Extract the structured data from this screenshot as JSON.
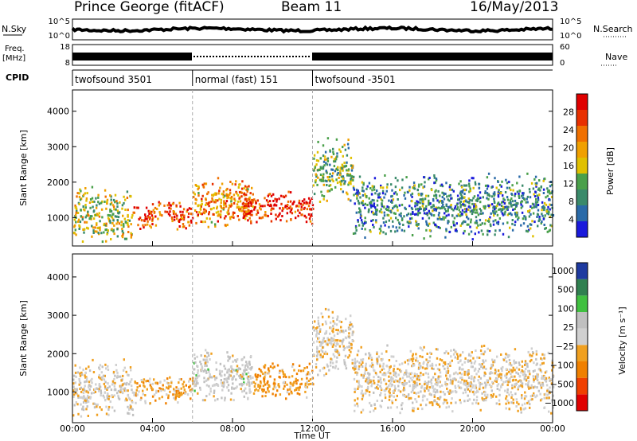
{
  "header": {
    "station": "Prince George (fitACF)",
    "beam": "Beam 11",
    "date": "16/May/2013"
  },
  "strips": {
    "nsky_label": "N.Sky",
    "nsky_ticks": [
      "10^5",
      "10^0"
    ],
    "nsearch_label": "N.Search",
    "nsearch_right_ticks": [
      "10^5",
      "10^0"
    ],
    "freq_label_line1": "Freq.",
    "freq_label_line2": "[MHz]",
    "freq_ticks": [
      "18",
      "8"
    ],
    "nave_label": "Nave",
    "nave_right_ticks": [
      "60",
      "0"
    ],
    "cpid_label": "CPID",
    "cpid_segments": [
      {
        "label": "twofsound 3501",
        "start_hour": 0,
        "end_hour": 6
      },
      {
        "label": "normal (fast) 151",
        "start_hour": 6,
        "end_hour": 12
      },
      {
        "label": "twofsound -3501",
        "start_hour": 12,
        "end_hour": 24
      }
    ]
  },
  "colors": {
    "power_scale": [
      "#1a1adc",
      "#2a6aa8",
      "#3a8a6a",
      "#4aa04a",
      "#e0c000",
      "#f0a000",
      "#f07000",
      "#e83000",
      "#e00000"
    ],
    "velocity_scale": [
      "#e00000",
      "#f04000",
      "#f08000",
      "#f0a020",
      "#d0d0d0",
      "#c0c0c0",
      "#40c040",
      "#308050",
      "#1e3aa0"
    ]
  },
  "chart_data": [
    {
      "type": "heatmap",
      "title": "",
      "xlabel": "",
      "ylabel": "Slant Range [km]",
      "xlim": [
        0,
        24
      ],
      "ylim": [
        200,
        4600
      ],
      "y_ticks": [
        1000,
        2000,
        3000,
        4000
      ],
      "colorbar": {
        "label": "Power [dB]",
        "ticks": [
          "4",
          "8",
          "12",
          "16",
          "20",
          "24",
          "28"
        ],
        "range": [
          0,
          30
        ]
      },
      "echo_regions": [
        {
          "t_start": 0.0,
          "t_end": 3.0,
          "r_min": 300,
          "r_max": 1900,
          "level_db": 14
        },
        {
          "t_start": 3.0,
          "t_end": 6.0,
          "r_min": 700,
          "r_max": 1500,
          "level_db": 24
        },
        {
          "t_start": 6.0,
          "t_end": 9.0,
          "r_min": 700,
          "r_max": 2200,
          "level_db": 20
        },
        {
          "t_start": 8.5,
          "t_end": 12.0,
          "r_min": 800,
          "r_max": 1800,
          "level_db": 26
        },
        {
          "t_start": 12.0,
          "t_end": 14.0,
          "r_min": 1400,
          "r_max": 3300,
          "level_db": 12
        },
        {
          "t_start": 14.0,
          "t_end": 24.0,
          "r_min": 400,
          "r_max": 2300,
          "level_db": 8
        }
      ]
    },
    {
      "type": "heatmap",
      "title": "",
      "xlabel": "Time UT",
      "ylabel": "Slant Range [km]",
      "xlim": [
        0,
        24
      ],
      "ylim": [
        200,
        4600
      ],
      "x_ticks": [
        "00:00",
        "04:00",
        "08:00",
        "12:00",
        "16:00",
        "20:00",
        "00:00"
      ],
      "y_ticks": [
        1000,
        2000,
        3000,
        4000
      ],
      "colorbar": {
        "label": "Velocity [m s⁻¹]",
        "ticks": [
          "1000",
          "500",
          "100",
          "25",
          "−25",
          "−100",
          "−500",
          "−1000"
        ],
        "range": [
          -1000,
          1000
        ]
      },
      "echo_regions": [
        {
          "t_start": 0.0,
          "t_end": 3.0,
          "r_min": 300,
          "r_max": 1900,
          "velocity": 0
        },
        {
          "t_start": 3.0,
          "t_end": 6.0,
          "r_min": 700,
          "r_max": 1500,
          "velocity": -200
        },
        {
          "t_start": 6.0,
          "t_end": 9.0,
          "r_min": 700,
          "r_max": 2200,
          "velocity": 100
        },
        {
          "t_start": 9.0,
          "t_end": 12.0,
          "r_min": 800,
          "r_max": 1800,
          "velocity": -300
        },
        {
          "t_start": 12.0,
          "t_end": 14.0,
          "r_min": 1400,
          "r_max": 3300,
          "velocity": 0
        },
        {
          "t_start": 14.0,
          "t_end": 24.0,
          "r_min": 400,
          "r_max": 2300,
          "velocity": -50
        }
      ]
    }
  ]
}
